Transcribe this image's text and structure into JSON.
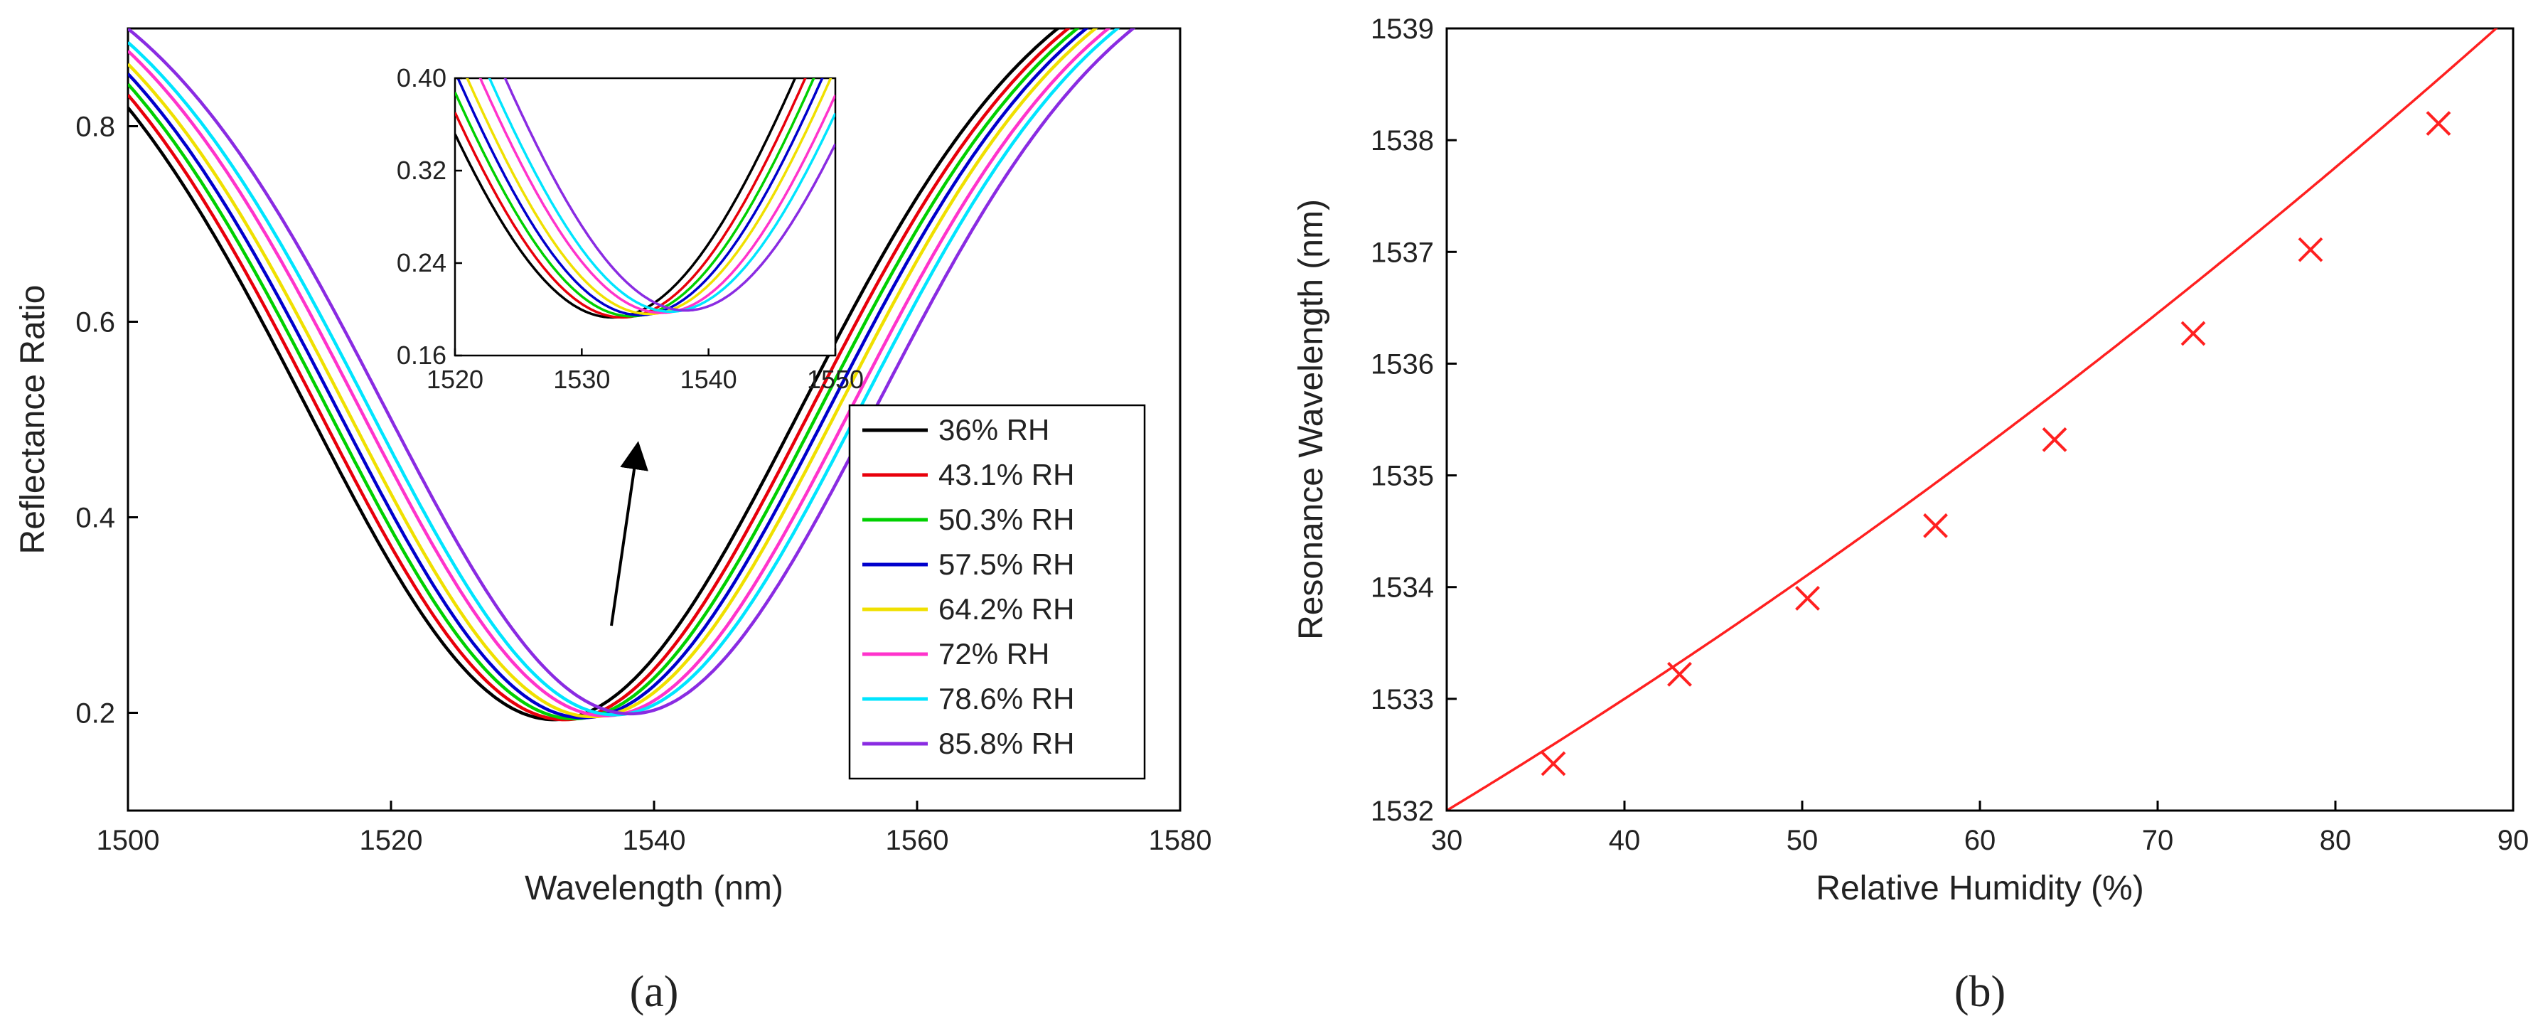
{
  "chart_data": [
    {
      "type": "line",
      "panel_label": "(a)",
      "xlabel": "Wavelength (nm)",
      "ylabel": "Reflectance Ratio",
      "xlim": [
        1500,
        1580
      ],
      "ylim": [
        0.1,
        0.9
      ],
      "xticks": [
        1500,
        1520,
        1540,
        1560,
        1580
      ],
      "yticks": [
        0.2,
        0.4,
        0.6,
        0.8
      ],
      "ytick_labels": [
        "0.2",
        "0.4",
        "0.6",
        "0.8"
      ],
      "legend": "lower-right",
      "model": "reflectance dip R(x) = min + (1 - min) * (1 - exp(-((x - center)/width)^2))",
      "series": [
        {
          "name": "36% RH",
          "color": "#000000",
          "center": 1532.4,
          "min": 0.193
        },
        {
          "name": "43.1% RH",
          "color": "#e8000b",
          "center": 1533.2,
          "min": 0.193
        },
        {
          "name": "50.3% RH",
          "color": "#00d000",
          "center": 1533.9,
          "min": 0.194
        },
        {
          "name": "57.5% RH",
          "color": "#0000cc",
          "center": 1534.6,
          "min": 0.195
        },
        {
          "name": "64.2% RH",
          "color": "#f0e000",
          "center": 1535.3,
          "min": 0.196
        },
        {
          "name": "72% RH",
          "color": "#ff33cc",
          "center": 1536.3,
          "min": 0.197
        },
        {
          "name": "78.6% RH",
          "color": "#00e5ff",
          "center": 1537.0,
          "min": 0.198
        },
        {
          "name": "85.8% RH",
          "color": "#8a2be2",
          "center": 1538.2,
          "min": 0.199
        }
      ],
      "curve_width_nm": 26.5,
      "annotation": "arrow indicating shift of resonance",
      "inset": {
        "xlim": [
          1520,
          1550
        ],
        "ylim": [
          0.16,
          0.4
        ],
        "xticks": [
          1520,
          1530,
          1540,
          1550
        ],
        "yticks": [
          0.16,
          0.24,
          0.32,
          0.4
        ],
        "ytick_labels": [
          "0.16",
          "0.24",
          "0.32",
          "0.40"
        ]
      }
    },
    {
      "type": "scatter",
      "panel_label": "(b)",
      "xlabel": "Relative Humidity (%)",
      "ylabel": "Resonance Wavelength (nm)",
      "xlim": [
        30,
        90
      ],
      "ylim": [
        1532,
        1539
      ],
      "xticks": [
        30,
        40,
        50,
        60,
        70,
        80,
        90
      ],
      "yticks": [
        1532,
        1533,
        1534,
        1535,
        1536,
        1537,
        1538,
        1539
      ],
      "points": [
        {
          "x": 36,
          "y": 1532.42
        },
        {
          "x": 43.1,
          "y": 1533.22
        },
        {
          "x": 50.3,
          "y": 1533.9
        },
        {
          "x": 57.5,
          "y": 1534.55
        },
        {
          "x": 64.2,
          "y": 1535.32
        },
        {
          "x": 72,
          "y": 1536.27
        },
        {
          "x": 78.6,
          "y": 1537.02
        },
        {
          "x": 85.8,
          "y": 1538.15
        }
      ],
      "fit": {
        "type": "quadratic",
        "a": 0.00038,
        "b": 0.0733,
        "c": 1529.46,
        "xrange": [
          30,
          90
        ]
      },
      "marker": "x",
      "color": "#ff2020"
    }
  ]
}
